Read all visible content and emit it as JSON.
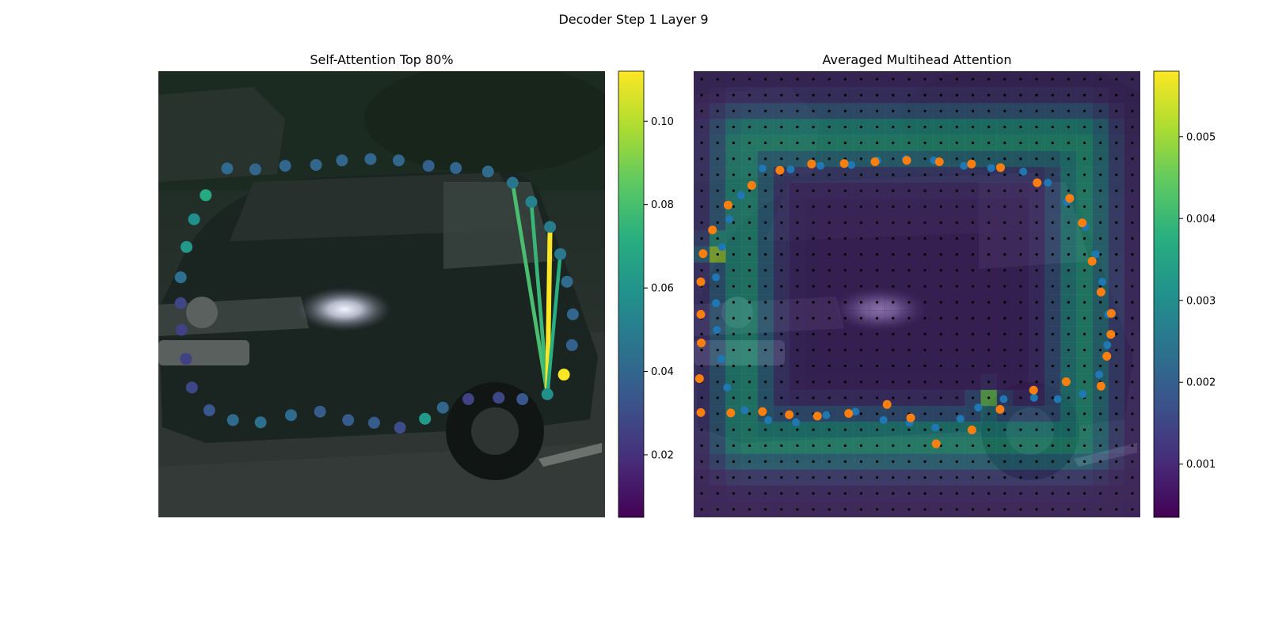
{
  "figure": {
    "title": "Decoder Step 1 Layer 9"
  },
  "colors": {
    "viridis": [
      "#440154",
      "#472c7a",
      "#3b528b",
      "#2c728e",
      "#21918c",
      "#28ae80",
      "#5ec962",
      "#addc30",
      "#fde725"
    ],
    "background_photo": "#1e2622",
    "overlay_tint": "#2b1a4a",
    "marker_blue": "#1f77b4",
    "marker_orange": "#ff7f0e",
    "grid_dot": "#000000"
  },
  "chart_data": [
    {
      "type": "scatter",
      "title": "Self-Attention Top 80%",
      "xlim": [
        0,
        1
      ],
      "ylim": [
        0,
        1
      ],
      "axes_visible": false,
      "background": "photo",
      "colorbar": {
        "range": [
          0.005,
          0.112
        ],
        "ticks": [
          0.02,
          0.04,
          0.06,
          0.08,
          0.1
        ],
        "tick_labels": [
          "0.02",
          "0.04",
          "0.06",
          "0.08",
          "0.10"
        ]
      },
      "points": [
        {
          "x": 0.154,
          "y": 0.218,
          "v": 0.042
        },
        {
          "x": 0.217,
          "y": 0.22,
          "v": 0.04
        },
        {
          "x": 0.284,
          "y": 0.212,
          "v": 0.04
        },
        {
          "x": 0.353,
          "y": 0.21,
          "v": 0.04
        },
        {
          "x": 0.411,
          "y": 0.2,
          "v": 0.04
        },
        {
          "x": 0.475,
          "y": 0.197,
          "v": 0.04
        },
        {
          "x": 0.538,
          "y": 0.2,
          "v": 0.04
        },
        {
          "x": 0.605,
          "y": 0.212,
          "v": 0.038
        },
        {
          "x": 0.666,
          "y": 0.217,
          "v": 0.04
        },
        {
          "x": 0.738,
          "y": 0.225,
          "v": 0.042
        },
        {
          "x": 0.793,
          "y": 0.25,
          "v": 0.046
        },
        {
          "x": 0.835,
          "y": 0.293,
          "v": 0.052
        },
        {
          "x": 0.877,
          "y": 0.349,
          "v": 0.05
        },
        {
          "x": 0.9,
          "y": 0.41,
          "v": 0.048
        },
        {
          "x": 0.915,
          "y": 0.472,
          "v": 0.042
        },
        {
          "x": 0.928,
          "y": 0.545,
          "v": 0.04
        },
        {
          "x": 0.926,
          "y": 0.614,
          "v": 0.038
        },
        {
          "x": 0.908,
          "y": 0.68,
          "v": 0.112
        },
        {
          "x": 0.871,
          "y": 0.724,
          "v": 0.058
        },
        {
          "x": 0.815,
          "y": 0.735,
          "v": 0.034
        },
        {
          "x": 0.762,
          "y": 0.732,
          "v": 0.028
        },
        {
          "x": 0.694,
          "y": 0.735,
          "v": 0.026
        },
        {
          "x": 0.637,
          "y": 0.754,
          "v": 0.04
        },
        {
          "x": 0.597,
          "y": 0.779,
          "v": 0.062
        },
        {
          "x": 0.541,
          "y": 0.799,
          "v": 0.03
        },
        {
          "x": 0.483,
          "y": 0.788,
          "v": 0.036
        },
        {
          "x": 0.425,
          "y": 0.782,
          "v": 0.036
        },
        {
          "x": 0.362,
          "y": 0.763,
          "v": 0.036
        },
        {
          "x": 0.297,
          "y": 0.771,
          "v": 0.042
        },
        {
          "x": 0.229,
          "y": 0.787,
          "v": 0.044
        },
        {
          "x": 0.167,
          "y": 0.782,
          "v": 0.042
        },
        {
          "x": 0.114,
          "y": 0.76,
          "v": 0.034
        },
        {
          "x": 0.075,
          "y": 0.709,
          "v": 0.028
        },
        {
          "x": 0.062,
          "y": 0.645,
          "v": 0.026
        },
        {
          "x": 0.052,
          "y": 0.58,
          "v": 0.026
        },
        {
          "x": 0.05,
          "y": 0.52,
          "v": 0.028
        },
        {
          "x": 0.05,
          "y": 0.462,
          "v": 0.044
        },
        {
          "x": 0.063,
          "y": 0.394,
          "v": 0.062
        },
        {
          "x": 0.08,
          "y": 0.332,
          "v": 0.058
        },
        {
          "x": 0.106,
          "y": 0.278,
          "v": 0.07
        }
      ],
      "links": [
        {
          "from": 18,
          "to": 10,
          "v": 0.08
        },
        {
          "from": 18,
          "to": 11,
          "v": 0.076
        },
        {
          "from": 18,
          "to": 12,
          "v": 0.112
        },
        {
          "from": 18,
          "to": 13,
          "v": 0.072
        }
      ]
    },
    {
      "type": "heatmap",
      "title": "Averaged Multihead Attention",
      "xlim": [
        0,
        1
      ],
      "ylim": [
        0,
        1
      ],
      "axes_visible": false,
      "grid_size": 28,
      "colorbar": {
        "range": [
          0.00035,
          0.0058
        ],
        "ticks": [
          0.001,
          0.002,
          0.003,
          0.004,
          0.005
        ],
        "tick_labels": [
          "0.001",
          "0.002",
          "0.003",
          "0.004",
          "0.005"
        ]
      },
      "heat": {
        "inner_box": [
          0.11,
          0.15,
          0.87,
          0.83
        ],
        "base": 0.0008,
        "ring_peak": 0.0035,
        "hot_spots": [
          {
            "x": 0.05,
            "y": 0.4,
            "v": 0.0056
          },
          {
            "x": 0.66,
            "y": 0.74,
            "v": 0.0048
          }
        ]
      },
      "series": [
        {
          "color": "blue",
          "points": [
            {
              "x": 0.154,
              "y": 0.218
            },
            {
              "x": 0.217,
              "y": 0.22
            },
            {
              "x": 0.284,
              "y": 0.212
            },
            {
              "x": 0.353,
              "y": 0.21
            },
            {
              "x": 0.411,
              "y": 0.2
            },
            {
              "x": 0.475,
              "y": 0.197
            },
            {
              "x": 0.538,
              "y": 0.2
            },
            {
              "x": 0.605,
              "y": 0.212
            },
            {
              "x": 0.666,
              "y": 0.217
            },
            {
              "x": 0.738,
              "y": 0.225
            },
            {
              "x": 0.793,
              "y": 0.25
            },
            {
              "x": 0.835,
              "y": 0.293
            },
            {
              "x": 0.877,
              "y": 0.349
            },
            {
              "x": 0.9,
              "y": 0.41
            },
            {
              "x": 0.915,
              "y": 0.472
            },
            {
              "x": 0.928,
              "y": 0.545
            },
            {
              "x": 0.926,
              "y": 0.614
            },
            {
              "x": 0.908,
              "y": 0.68
            },
            {
              "x": 0.871,
              "y": 0.724
            },
            {
              "x": 0.815,
              "y": 0.735
            },
            {
              "x": 0.762,
              "y": 0.732
            },
            {
              "x": 0.694,
              "y": 0.735
            },
            {
              "x": 0.637,
              "y": 0.754
            },
            {
              "x": 0.597,
              "y": 0.779
            },
            {
              "x": 0.541,
              "y": 0.799
            },
            {
              "x": 0.483,
              "y": 0.788
            },
            {
              "x": 0.425,
              "y": 0.782
            },
            {
              "x": 0.362,
              "y": 0.763
            },
            {
              "x": 0.297,
              "y": 0.771
            },
            {
              "x": 0.229,
              "y": 0.787
            },
            {
              "x": 0.167,
              "y": 0.782
            },
            {
              "x": 0.114,
              "y": 0.76
            },
            {
              "x": 0.075,
              "y": 0.709
            },
            {
              "x": 0.062,
              "y": 0.645
            },
            {
              "x": 0.052,
              "y": 0.58
            },
            {
              "x": 0.05,
              "y": 0.52
            },
            {
              "x": 0.05,
              "y": 0.462
            },
            {
              "x": 0.063,
              "y": 0.394
            },
            {
              "x": 0.08,
              "y": 0.332
            },
            {
              "x": 0.106,
              "y": 0.278
            }
          ]
        },
        {
          "color": "orange",
          "points": [
            {
              "x": 0.193,
              "y": 0.222
            },
            {
              "x": 0.264,
              "y": 0.208
            },
            {
              "x": 0.337,
              "y": 0.207
            },
            {
              "x": 0.406,
              "y": 0.203
            },
            {
              "x": 0.477,
              "y": 0.2
            },
            {
              "x": 0.55,
              "y": 0.203
            },
            {
              "x": 0.622,
              "y": 0.208
            },
            {
              "x": 0.687,
              "y": 0.216
            },
            {
              "x": 0.769,
              "y": 0.25
            },
            {
              "x": 0.842,
              "y": 0.285
            },
            {
              "x": 0.87,
              "y": 0.34
            },
            {
              "x": 0.892,
              "y": 0.426
            },
            {
              "x": 0.912,
              "y": 0.495
            },
            {
              "x": 0.935,
              "y": 0.543
            },
            {
              "x": 0.934,
              "y": 0.59
            },
            {
              "x": 0.925,
              "y": 0.639
            },
            {
              "x": 0.912,
              "y": 0.706
            },
            {
              "x": 0.834,
              "y": 0.696
            },
            {
              "x": 0.761,
              "y": 0.715
            },
            {
              "x": 0.686,
              "y": 0.758
            },
            {
              "x": 0.623,
              "y": 0.804
            },
            {
              "x": 0.543,
              "y": 0.835
            },
            {
              "x": 0.486,
              "y": 0.777
            },
            {
              "x": 0.433,
              "y": 0.747
            },
            {
              "x": 0.347,
              "y": 0.767
            },
            {
              "x": 0.277,
              "y": 0.773
            },
            {
              "x": 0.214,
              "y": 0.77
            },
            {
              "x": 0.154,
              "y": 0.763
            },
            {
              "x": 0.083,
              "y": 0.766
            },
            {
              "x": 0.016,
              "y": 0.765
            },
            {
              "x": 0.013,
              "y": 0.689
            },
            {
              "x": 0.017,
              "y": 0.609
            },
            {
              "x": 0.016,
              "y": 0.545
            },
            {
              "x": 0.016,
              "y": 0.472
            },
            {
              "x": 0.021,
              "y": 0.409
            },
            {
              "x": 0.042,
              "y": 0.356
            },
            {
              "x": 0.077,
              "y": 0.3
            },
            {
              "x": 0.13,
              "y": 0.256
            }
          ]
        }
      ]
    }
  ]
}
